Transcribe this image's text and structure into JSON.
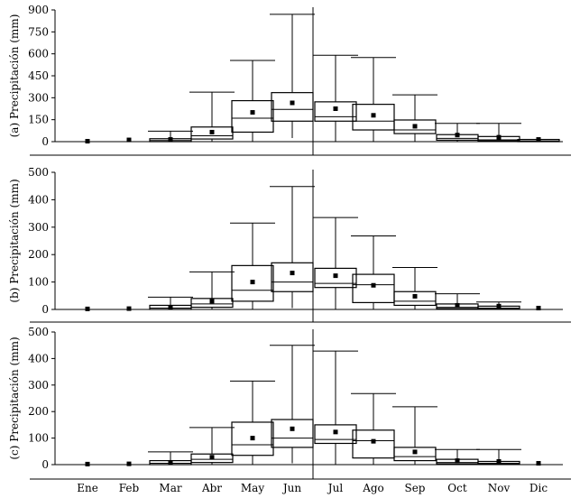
{
  "chart_data": {
    "type": "box",
    "months": [
      "Ene",
      "Feb",
      "Mar",
      "Abr",
      "May",
      "Jun",
      "Jul",
      "Ago",
      "Sep",
      "Oct",
      "Nov",
      "Dic"
    ],
    "panels": [
      {
        "ylabel": "(a) Precipitación (mm)",
        "ylim": [
          0,
          900
        ],
        "yticks": [
          0,
          150,
          300,
          450,
          600,
          750,
          900
        ],
        "boxes": [
          {
            "min": 0,
            "q1": 0,
            "median": 0,
            "q3": 0,
            "max": 0,
            "mean": 3
          },
          {
            "min": 0,
            "q1": 0,
            "median": 0,
            "q3": 0,
            "max": 0,
            "mean": 12
          },
          {
            "min": 0,
            "q1": 0,
            "median": 8,
            "q3": 20,
            "max": 72,
            "mean": 15
          },
          {
            "min": 0,
            "q1": 18,
            "median": 40,
            "q3": 100,
            "max": 338,
            "mean": 65
          },
          {
            "min": 0,
            "q1": 65,
            "median": 160,
            "q3": 280,
            "max": 555,
            "mean": 200
          },
          {
            "min": 25,
            "q1": 140,
            "median": 220,
            "q3": 335,
            "max": 870,
            "mean": 265
          },
          {
            "min": 0,
            "q1": 140,
            "median": 170,
            "q3": 272,
            "max": 590,
            "mean": 225
          },
          {
            "min": 0,
            "q1": 80,
            "median": 140,
            "q3": 255,
            "max": 575,
            "mean": 180
          },
          {
            "min": 0,
            "q1": 55,
            "median": 80,
            "q3": 148,
            "max": 320,
            "mean": 105
          },
          {
            "min": 0,
            "q1": 10,
            "median": 22,
            "q3": 48,
            "max": 125,
            "mean": 45
          },
          {
            "min": 0,
            "q1": 5,
            "median": 12,
            "q3": 35,
            "max": 125,
            "mean": 30
          },
          {
            "min": 0,
            "q1": 0,
            "median": 5,
            "q3": 15,
            "max": 15,
            "mean": 15
          }
        ]
      },
      {
        "ylabel": "(b) Precipitación (mm)",
        "ylim": [
          0,
          500
        ],
        "yticks": [
          0,
          100,
          200,
          300,
          400,
          500
        ],
        "boxes": [
          {
            "min": 0,
            "q1": 0,
            "median": 0,
            "q3": 0,
            "max": 0,
            "mean": 2
          },
          {
            "min": 0,
            "q1": 0,
            "median": 0,
            "q3": 0,
            "max": 0,
            "mean": 3
          },
          {
            "min": 0,
            "q1": 0,
            "median": 5,
            "q3": 15,
            "max": 45,
            "mean": 8
          },
          {
            "min": 0,
            "q1": 8,
            "median": 20,
            "q3": 40,
            "max": 137,
            "mean": 30
          },
          {
            "min": 0,
            "q1": 30,
            "median": 70,
            "q3": 160,
            "max": 315,
            "mean": 100
          },
          {
            "min": 5,
            "q1": 65,
            "median": 100,
            "q3": 170,
            "max": 448,
            "mean": 133
          },
          {
            "min": 0,
            "q1": 80,
            "median": 95,
            "q3": 150,
            "max": 335,
            "mean": 123
          },
          {
            "min": 0,
            "q1": 25,
            "median": 90,
            "q3": 128,
            "max": 268,
            "mean": 88
          },
          {
            "min": 0,
            "q1": 15,
            "median": 30,
            "q3": 65,
            "max": 153,
            "mean": 48
          },
          {
            "min": 0,
            "q1": 3,
            "median": 8,
            "q3": 20,
            "max": 57,
            "mean": 15
          },
          {
            "min": 0,
            "q1": 2,
            "median": 5,
            "q3": 12,
            "max": 27,
            "mean": 12
          },
          {
            "min": 0,
            "q1": 0,
            "median": 0,
            "q3": 0,
            "max": 0,
            "mean": 5
          }
        ]
      },
      {
        "ylabel": "(c) Precipitación (mm)",
        "ylim": [
          0,
          500
        ],
        "yticks": [
          0,
          100,
          200,
          300,
          400,
          500
        ],
        "boxes": [
          {
            "min": 0,
            "q1": 0,
            "median": 0,
            "q3": 0,
            "max": 0,
            "mean": 2
          },
          {
            "min": 0,
            "q1": 0,
            "median": 0,
            "q3": 0,
            "max": 0,
            "mean": 3
          },
          {
            "min": 0,
            "q1": 0,
            "median": 5,
            "q3": 15,
            "max": 48,
            "mean": 8
          },
          {
            "min": 0,
            "q1": 8,
            "median": 20,
            "q3": 40,
            "max": 140,
            "mean": 28
          },
          {
            "min": 0,
            "q1": 35,
            "median": 75,
            "q3": 160,
            "max": 315,
            "mean": 100
          },
          {
            "min": 5,
            "q1": 65,
            "median": 100,
            "q3": 170,
            "max": 450,
            "mean": 135
          },
          {
            "min": 0,
            "q1": 80,
            "median": 95,
            "q3": 150,
            "max": 428,
            "mean": 123
          },
          {
            "min": 0,
            "q1": 25,
            "median": 90,
            "q3": 130,
            "max": 268,
            "mean": 88
          },
          {
            "min": 0,
            "q1": 15,
            "median": 30,
            "q3": 65,
            "max": 218,
            "mean": 48
          },
          {
            "min": 0,
            "q1": 3,
            "median": 8,
            "q3": 20,
            "max": 57,
            "mean": 15
          },
          {
            "min": 0,
            "q1": 2,
            "median": 5,
            "q3": 12,
            "max": 57,
            "mean": 12
          },
          {
            "min": 0,
            "q1": 0,
            "median": 0,
            "q3": 0,
            "max": 0,
            "mean": 5
          }
        ]
      }
    ]
  }
}
